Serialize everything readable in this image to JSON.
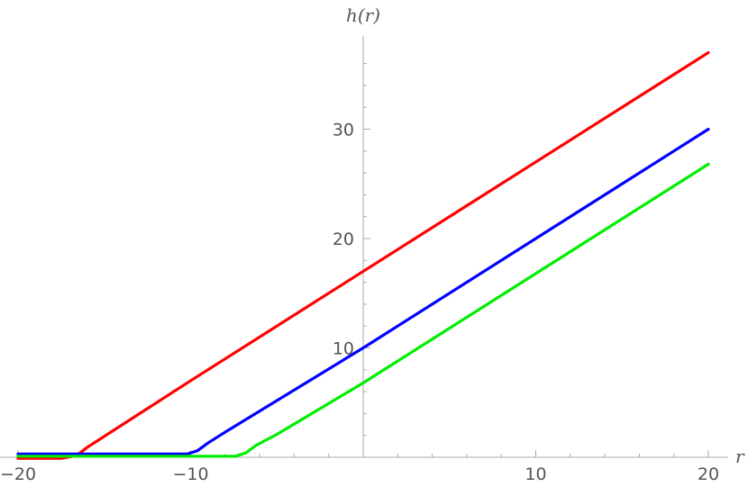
{
  "chart_data": {
    "type": "line",
    "xlabel": "r",
    "ylabel": "h(r)",
    "xlim": [
      -20,
      20
    ],
    "ylim": [
      0,
      38
    ],
    "grid": false,
    "x_ticks": [
      {
        "value": -20,
        "label": "−20"
      },
      {
        "value": -10,
        "label": "−10"
      },
      {
        "value": 10,
        "label": "10"
      },
      {
        "value": 20,
        "label": "20"
      }
    ],
    "y_ticks": [
      {
        "value": 10,
        "label": "10"
      },
      {
        "value": 20,
        "label": "20"
      },
      {
        "value": 30,
        "label": "30"
      }
    ],
    "series": [
      {
        "color": "#ff0000",
        "x": [
          -20,
          -17.5,
          -16.8,
          -16.4,
          -16,
          -10,
          0,
          10,
          20
        ],
        "y": [
          -0.1,
          -0.1,
          0.1,
          0.4,
          0.9,
          7,
          17,
          27,
          37
        ]
      },
      {
        "color": "#0000ff",
        "x": [
          -20,
          -10.2,
          -9.6,
          -9,
          -8,
          0,
          10,
          20
        ],
        "y": [
          0.3,
          0.3,
          0.6,
          1.3,
          2.3,
          10,
          20,
          30
        ]
      },
      {
        "color": "#00ee00",
        "x": [
          -20,
          -7.4,
          -6.8,
          -6.2,
          -5,
          0,
          10,
          20
        ],
        "y": [
          0.1,
          0.1,
          0.4,
          1.1,
          2.1,
          6.8,
          16.8,
          26.8
        ]
      }
    ]
  }
}
